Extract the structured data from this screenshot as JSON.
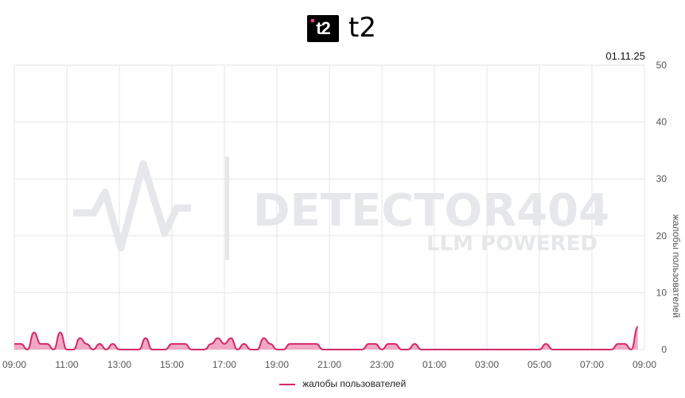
{
  "header": {
    "logo_mark": "t2",
    "brand": "t2",
    "date": "01.11.25"
  },
  "watermark": {
    "title": "DETECTOR404",
    "subtitle": "LLM POWERED"
  },
  "colors": {
    "series": "#d6286b",
    "fill": "#ef9ab8",
    "grid": "#e5e5e5"
  },
  "chart_data": {
    "type": "area",
    "title": "",
    "xlabel": "",
    "ylabel": "жалобы пользователей",
    "ylim": [
      0,
      50
    ],
    "yticks": [
      0,
      10,
      20,
      30,
      40,
      50
    ],
    "y_axis_side": "right",
    "grid": true,
    "legend": "bottom-center",
    "x_tick_labels": [
      "09:00",
      "11:00",
      "13:00",
      "15:00",
      "17:00",
      "19:00",
      "21:00",
      "23:00",
      "01:00",
      "03:00",
      "05:00",
      "07:00",
      "09:00"
    ],
    "x_start": "2025-10-31T09:00",
    "x_step_minutes": 20,
    "series": [
      {
        "name": "жалобы пользователей",
        "values": [
          1,
          1,
          0,
          3,
          1,
          1,
          0,
          3,
          0,
          0,
          2,
          1,
          0,
          1,
          0,
          1,
          0,
          0,
          0,
          0,
          2,
          0,
          0,
          0,
          1,
          1,
          1,
          0,
          0,
          0,
          1,
          2,
          1,
          2,
          0,
          1,
          0,
          0,
          2,
          1,
          0,
          0,
          1,
          1,
          1,
          1,
          1,
          0,
          0,
          0,
          0,
          0,
          0,
          0,
          1,
          1,
          0,
          1,
          1,
          0,
          0,
          1,
          0,
          0,
          0,
          0,
          0,
          0,
          0,
          0,
          0,
          0,
          0,
          0,
          0,
          0,
          0,
          0,
          0,
          0,
          0,
          1,
          0,
          0,
          0,
          0,
          0,
          0,
          0,
          0,
          0,
          0,
          1,
          1,
          0,
          4
        ]
      }
    ]
  },
  "legend": {
    "label": "жалобы пользователей"
  }
}
